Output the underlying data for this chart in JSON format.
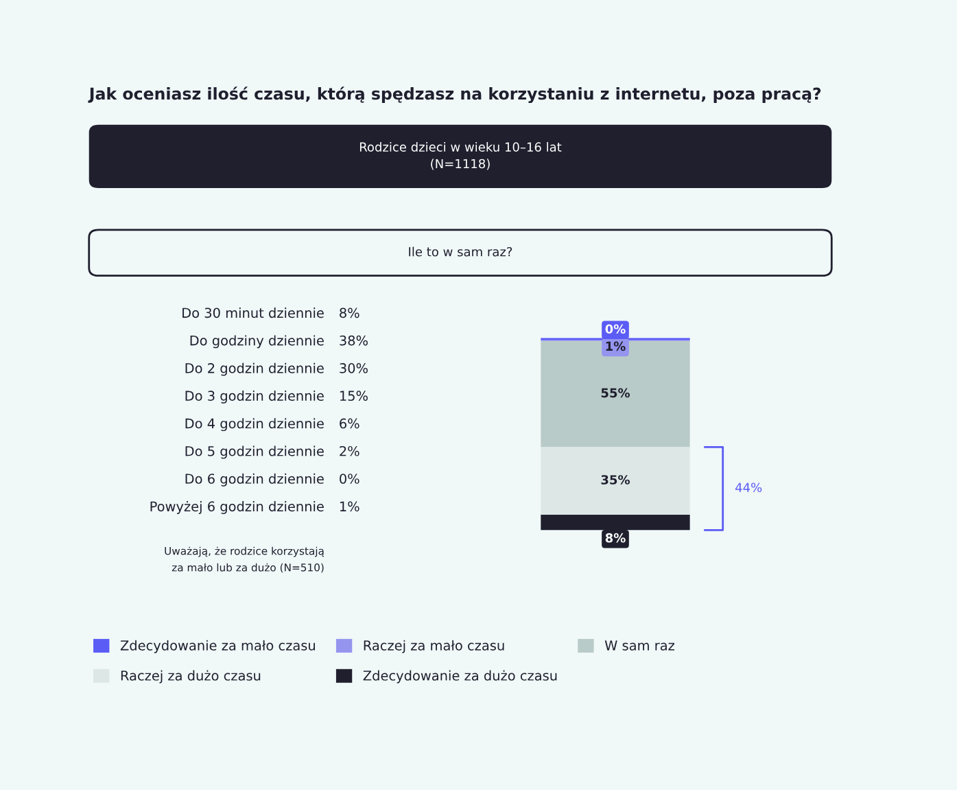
{
  "chart_data": [
    {
      "type": "other",
      "title": "Jak oceniasz ilość czasu, którą spędzasz na korzystaniu z internetu, poza pracą?",
      "subtitle": "Rodzice dzieci w wieku 10–16 lat\n(N=1118)",
      "annotations": [
        "Ile to w sam raz?",
        "Uważają, że rodzice korzystają\nza mało lub za dużo (N=510)"
      ],
      "categories": [
        "Do 30 minut dziennie",
        "Do godziny dziennie",
        "Do 2 godzin dziennie",
        "Do 3 godzin dziennie",
        "Do 4 godzin dziennie",
        "Do 5 godzin dziennie",
        "Do 6 godzin dziennie",
        "Powyżej 6 godzin dziennie"
      ],
      "value_labels": [
        "8%",
        "38%",
        "30%",
        "15%",
        "6%",
        "2%",
        "0%",
        "1%"
      ]
    },
    {
      "type": "bar",
      "stacked": true,
      "categories": [
        null
      ],
      "legend": "bottom",
      "annotations": [
        "44%"
      ],
      "series": [
        {
          "name": "Zdecydowanie za dużo czasu",
          "color": "#1f1f2e",
          "values": [
            8
          ],
          "value_labels": [
            "8%"
          ]
        },
        {
          "name": "Raczej za dużo czasu",
          "color": "#dde8e6",
          "values": [
            35
          ],
          "value_labels": [
            "35%"
          ]
        },
        {
          "name": "W sam raz",
          "color": "#b9cbc9",
          "values": [
            55
          ],
          "value_labels": [
            "55%"
          ]
        },
        {
          "name": "Raczej za mało czasu",
          "color": "#9595ef",
          "values": [
            1
          ],
          "value_labels": [
            "1%"
          ]
        },
        {
          "name": "Zdecydowanie za mało czasu",
          "color": "#5b5bf5",
          "values": [
            0
          ],
          "value_labels": [
            "0%"
          ]
        }
      ]
    }
  ]
}
